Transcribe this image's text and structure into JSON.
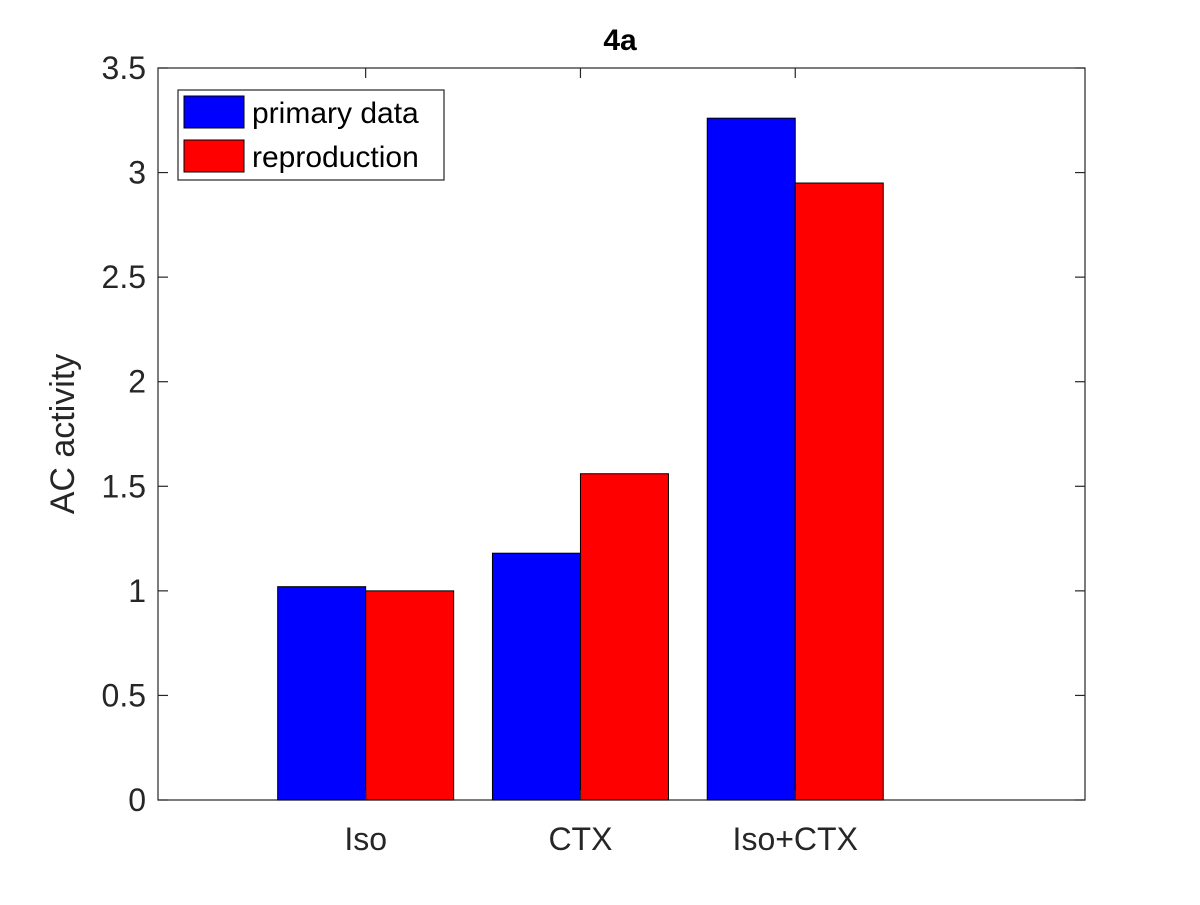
{
  "chart_data": {
    "type": "bar",
    "title": "4a",
    "xlabel": "",
    "ylabel": "AC activity",
    "categories": [
      "Iso",
      "CTX",
      "Iso+CTX"
    ],
    "series": [
      {
        "name": "primary data",
        "color": "#0000ff",
        "values": [
          1.02,
          1.18,
          3.26
        ]
      },
      {
        "name": "reproduction",
        "color": "#ff0000",
        "values": [
          1.0,
          1.56,
          2.95
        ]
      }
    ],
    "ylim": [
      0,
      3.5
    ],
    "yticks": [
      0,
      0.5,
      1,
      1.5,
      2,
      2.5,
      3,
      3.5
    ],
    "ytick_labels": [
      "0",
      "0.5",
      "1",
      "1.5",
      "2",
      "2.5",
      "3",
      "3.5"
    ],
    "grid": false,
    "legend_position": "top-left"
  }
}
